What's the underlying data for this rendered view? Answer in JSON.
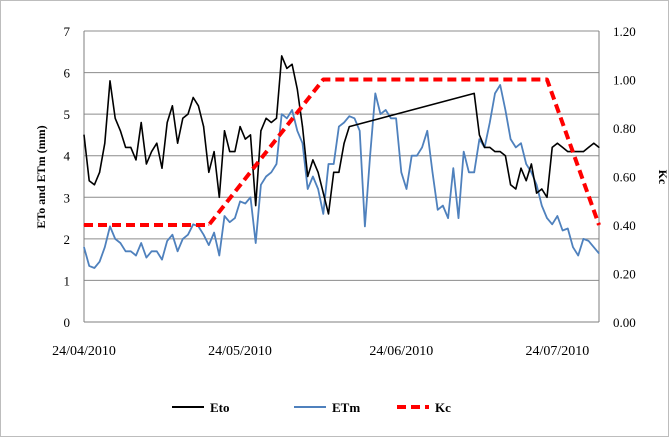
{
  "chart_data": {
    "type": "line",
    "title": "",
    "ylabel": "ETo and ETm (mm)",
    "y2label": "Kc",
    "ylim": [
      0,
      7
    ],
    "y2lim": [
      0,
      1.2
    ],
    "yticks": [
      "0",
      "1",
      "2",
      "3",
      "4",
      "5",
      "6",
      "7"
    ],
    "y2ticks": [
      "0.00",
      "0.20",
      "0.40",
      "0.60",
      "0.80",
      "1.00",
      "1.20"
    ],
    "xrange": [
      "2010-04-24",
      "2010-08-01"
    ],
    "xticks": [
      {
        "date": "2010-04-24",
        "label": "24/04/2010"
      },
      {
        "date": "2010-05-24",
        "label": "24/05/2010"
      },
      {
        "date": "2010-06-24",
        "label": "24/06/2010"
      },
      {
        "date": "2010-07-24",
        "label": "24/07/2010"
      }
    ],
    "grid": "horizontal",
    "legend_position": "bottom",
    "series": [
      {
        "name": "Eto",
        "axis": "left",
        "color": "#000000",
        "style": "solid",
        "x": [
          "2010-04-24",
          "2010-04-25",
          "2010-04-26",
          "2010-04-27",
          "2010-04-28",
          "2010-04-29",
          "2010-04-30",
          "2010-05-01",
          "2010-05-02",
          "2010-05-03",
          "2010-05-04",
          "2010-05-05",
          "2010-05-06",
          "2010-05-07",
          "2010-05-08",
          "2010-05-09",
          "2010-05-10",
          "2010-05-11",
          "2010-05-12",
          "2010-05-13",
          "2010-05-14",
          "2010-05-15",
          "2010-05-16",
          "2010-05-17",
          "2010-05-18",
          "2010-05-19",
          "2010-05-20",
          "2010-05-21",
          "2010-05-22",
          "2010-05-23",
          "2010-05-24",
          "2010-05-25",
          "2010-05-26",
          "2010-05-27",
          "2010-05-28",
          "2010-05-29",
          "2010-05-30",
          "2010-05-31",
          "2010-06-01",
          "2010-06-02",
          "2010-06-03",
          "2010-06-04",
          "2010-06-05",
          "2010-06-06",
          "2010-06-07",
          "2010-06-08",
          "2010-06-09",
          "2010-06-10",
          "2010-06-11",
          "2010-06-12",
          "2010-06-13",
          "2010-06-14",
          "2010-07-08",
          "2010-07-09",
          "2010-07-10",
          "2010-07-11",
          "2010-07-12",
          "2010-07-13",
          "2010-07-14",
          "2010-07-15",
          "2010-07-16",
          "2010-07-17",
          "2010-07-18",
          "2010-07-19",
          "2010-07-20",
          "2010-07-21",
          "2010-07-22",
          "2010-07-23",
          "2010-07-24",
          "2010-07-25",
          "2010-07-26",
          "2010-07-27",
          "2010-07-28",
          "2010-07-29",
          "2010-07-30",
          "2010-07-31",
          "2010-08-01"
        ],
        "y": [
          4.5,
          3.4,
          3.3,
          3.6,
          4.3,
          5.8,
          4.9,
          4.6,
          4.2,
          4.2,
          3.9,
          4.8,
          3.8,
          4.1,
          4.3,
          3.7,
          4.8,
          5.2,
          4.3,
          4.9,
          5.0,
          5.4,
          5.2,
          4.7,
          3.6,
          4.1,
          3.0,
          4.6,
          4.1,
          4.1,
          4.7,
          4.4,
          4.5,
          2.8,
          4.6,
          4.9,
          4.8,
          4.9,
          6.4,
          6.1,
          6.2,
          5.6,
          4.7,
          3.5,
          3.9,
          3.6,
          3.1,
          2.6,
          3.6,
          3.6,
          4.3,
          4.7,
          5.5,
          4.5,
          4.2,
          4.2,
          4.1,
          4.1,
          4.0,
          3.3,
          3.2,
          3.7,
          3.4,
          3.8,
          3.1,
          3.2,
          3.0,
          4.2,
          4.3,
          4.2,
          4.1,
          4.1,
          4.1,
          4.1,
          4.2,
          4.3,
          4.2
        ]
      },
      {
        "name": "ETm",
        "axis": "left",
        "color": "#4f81bd",
        "style": "solid",
        "x": [
          "2010-04-24",
          "2010-04-25",
          "2010-04-26",
          "2010-04-27",
          "2010-04-28",
          "2010-04-29",
          "2010-04-30",
          "2010-05-01",
          "2010-05-02",
          "2010-05-03",
          "2010-05-04",
          "2010-05-05",
          "2010-05-06",
          "2010-05-07",
          "2010-05-08",
          "2010-05-09",
          "2010-05-10",
          "2010-05-11",
          "2010-05-12",
          "2010-05-13",
          "2010-05-14",
          "2010-05-15",
          "2010-05-16",
          "2010-05-17",
          "2010-05-18",
          "2010-05-19",
          "2010-05-20",
          "2010-05-21",
          "2010-05-22",
          "2010-05-23",
          "2010-05-24",
          "2010-05-25",
          "2010-05-26",
          "2010-05-27",
          "2010-05-28",
          "2010-05-29",
          "2010-05-30",
          "2010-05-31",
          "2010-06-01",
          "2010-06-02",
          "2010-06-03",
          "2010-06-04",
          "2010-06-05",
          "2010-06-06",
          "2010-06-07",
          "2010-06-08",
          "2010-06-09",
          "2010-06-10",
          "2010-06-11",
          "2010-06-12",
          "2010-06-13",
          "2010-06-14",
          "2010-06-15",
          "2010-06-16",
          "2010-06-17",
          "2010-06-18",
          "2010-06-19",
          "2010-06-20",
          "2010-06-21",
          "2010-06-22",
          "2010-06-23",
          "2010-06-24",
          "2010-06-25",
          "2010-06-26",
          "2010-06-27",
          "2010-06-28",
          "2010-06-29",
          "2010-06-30",
          "2010-07-01",
          "2010-07-02",
          "2010-07-03",
          "2010-07-04",
          "2010-07-05",
          "2010-07-06",
          "2010-07-07",
          "2010-07-08",
          "2010-07-09",
          "2010-07-10",
          "2010-07-11",
          "2010-07-12",
          "2010-07-13",
          "2010-07-14",
          "2010-07-15",
          "2010-07-16",
          "2010-07-17",
          "2010-07-18",
          "2010-07-19",
          "2010-07-20",
          "2010-07-21",
          "2010-07-22",
          "2010-07-23",
          "2010-07-24",
          "2010-07-25",
          "2010-07-26",
          "2010-07-27",
          "2010-07-28",
          "2010-07-29",
          "2010-07-30",
          "2010-07-31",
          "2010-08-01"
        ],
        "y": [
          1.8,
          1.35,
          1.3,
          1.45,
          1.8,
          2.3,
          2.0,
          1.9,
          1.7,
          1.7,
          1.6,
          1.9,
          1.55,
          1.7,
          1.7,
          1.5,
          1.95,
          2.1,
          1.7,
          2.0,
          2.1,
          2.35,
          2.3,
          2.1,
          1.85,
          2.15,
          1.6,
          2.55,
          2.4,
          2.5,
          2.9,
          2.85,
          3.0,
          1.9,
          3.3,
          3.5,
          3.6,
          3.8,
          5.0,
          4.9,
          5.1,
          4.6,
          4.3,
          3.2,
          3.5,
          3.2,
          2.6,
          3.8,
          3.8,
          4.7,
          4.8,
          4.95,
          4.9,
          4.6,
          2.3,
          4.0,
          5.5,
          5.0,
          5.1,
          4.9,
          4.9,
          3.6,
          3.2,
          4.0,
          4.0,
          4.2,
          4.6,
          3.6,
          2.7,
          2.8,
          2.5,
          3.7,
          2.5,
          4.1,
          3.6,
          3.6,
          4.4,
          4.2,
          4.8,
          5.5,
          5.7,
          5.1,
          4.4,
          4.2,
          4.3,
          3.8,
          3.6,
          3.3,
          2.8,
          2.5,
          2.35,
          2.55,
          2.2,
          2.25,
          1.8,
          1.6,
          2.0,
          1.95,
          1.8,
          1.65
        ]
      },
      {
        "name": "Kc",
        "axis": "right",
        "color": "#ff0000",
        "style": "dashed",
        "x": [
          "2010-04-24",
          "2010-05-18",
          "2010-06-09",
          "2010-07-22",
          "2010-08-01"
        ],
        "y": [
          0.4,
          0.4,
          1.0,
          1.0,
          0.4
        ]
      }
    ]
  }
}
